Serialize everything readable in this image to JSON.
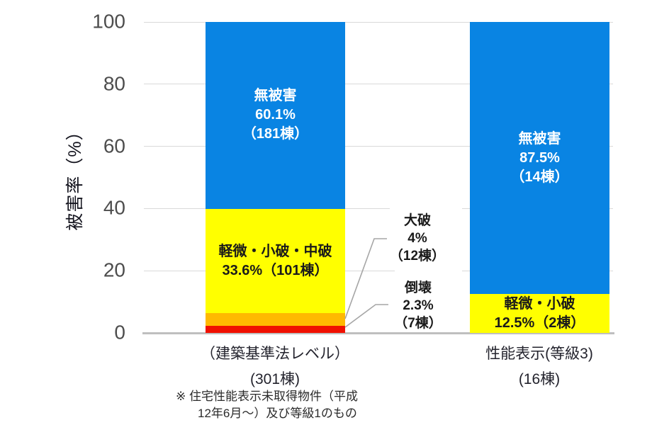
{
  "colors": {
    "no_damage_blue": "#0984e3",
    "minor_damage_yellow": "#ffff00",
    "major_damage_orange": "#ffb900",
    "collapse_red": "#f01000",
    "gridline": "#d9d9d9",
    "axis_line": "#bfbfbf",
    "leader_line": "#a6a6a6"
  },
  "chart_data": {
    "type": "bar",
    "stacked": true,
    "title": "",
    "ylabel": "被害率（%）",
    "xlabel": "",
    "ylim": [
      0,
      100
    ],
    "yticks": [
      0,
      20,
      40,
      60,
      80,
      100
    ],
    "grid": true,
    "legend_position": "none",
    "categories": [
      "（建築基準法レベル） (301棟)",
      "性能表示(等級3) (16棟)"
    ],
    "series": [
      {
        "name": "倒壊",
        "values": [
          2.3,
          0
        ],
        "counts": [
          "7棟",
          ""
        ],
        "color": "#f01000"
      },
      {
        "name": "大破",
        "values": [
          4.0,
          0
        ],
        "counts": [
          "12棟",
          ""
        ],
        "color": "#ffb900"
      },
      {
        "name": "軽微・小破・中破",
        "values": [
          33.6,
          12.5
        ],
        "counts": [
          "101棟",
          "2棟"
        ],
        "color": "#ffff00"
      },
      {
        "name": "無被害",
        "values": [
          60.1,
          87.5
        ],
        "counts": [
          "181棟",
          "14棟"
        ],
        "color": "#0984e3"
      }
    ]
  },
  "y_axis": {
    "label": "被害率（%）"
  },
  "bars": [
    {
      "segments": [
        {
          "name": "倒壊",
          "pct": 2.3,
          "color": "#f01000",
          "text": "#1a1a1a",
          "lines": []
        },
        {
          "name": "大破",
          "pct": 4.0,
          "color": "#ffb900",
          "text": "#1a1a1a",
          "lines": []
        },
        {
          "name": "軽微・小破・中破",
          "pct": 33.6,
          "color": "#ffff00",
          "text": "#1a1a1a",
          "lines": [
            "軽微・小破・中破",
            "33.6%（101棟）"
          ]
        },
        {
          "name": "無被害",
          "pct": 60.1,
          "color": "#0984e3",
          "text": "#ffffff",
          "lines": [
            "無被害",
            "60.1%",
            "（181棟）"
          ]
        }
      ]
    },
    {
      "segments": [
        {
          "name": "軽微・小破",
          "pct": 12.5,
          "color": "#ffff00",
          "text": "#1a1a1a",
          "lines": [
            "軽微・小破",
            "12.5%（2棟）"
          ]
        },
        {
          "name": "無被害",
          "pct": 87.5,
          "color": "#0984e3",
          "text": "#ffffff",
          "lines": [
            "無被害",
            "87.5%",
            "（14棟）"
          ]
        }
      ]
    }
  ],
  "annotations": [
    {
      "lines": [
        "大破",
        "4%",
        "（12棟）"
      ]
    },
    {
      "lines": [
        "倒壊",
        "2.3%",
        "（7棟）"
      ]
    }
  ],
  "x_labels": [
    {
      "line1": "（建築基準法レベル）",
      "line2": "(301棟)"
    },
    {
      "line1": "性能表示(等級3)",
      "line2": "(16棟)"
    }
  ],
  "footnote": {
    "line1": "※ 住宅性能表示未取得物件（平成",
    "line2": "12年6月～）及び等級1のもの"
  }
}
